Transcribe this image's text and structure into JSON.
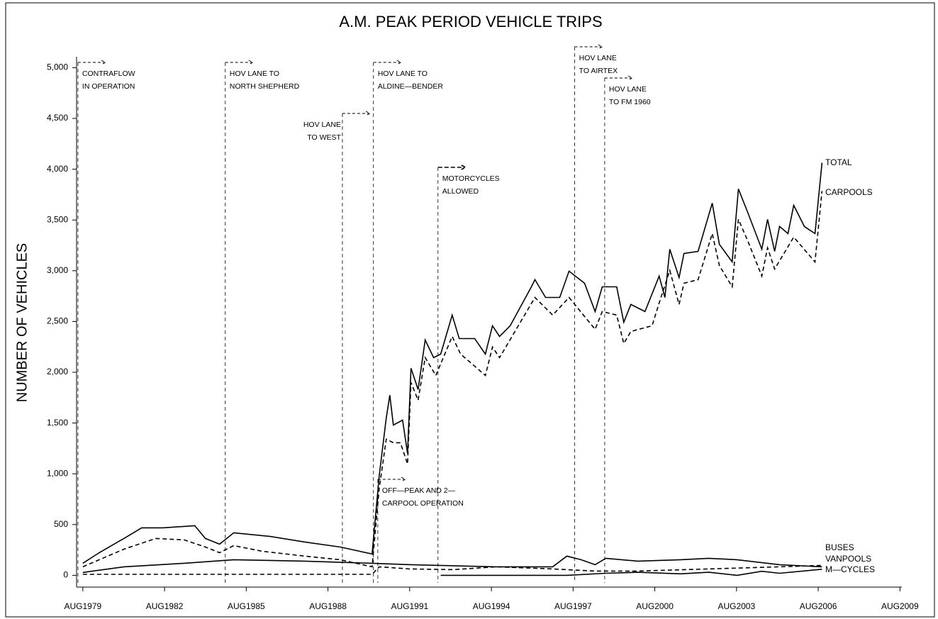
{
  "chart_data": {
    "type": "line",
    "title": "A.M. PEAK PERIOD VEHICLE TRIPS",
    "y_label": "NUMBER OF VEHICLES",
    "xlim": [
      1979.35,
      2009.65
    ],
    "xticks": [
      {
        "value": 1979.58,
        "label": "AUG1979"
      },
      {
        "value": 1982.58,
        "label": "AUG1982"
      },
      {
        "value": 1985.58,
        "label": "AUG1985"
      },
      {
        "value": 1988.58,
        "label": "AUG1988"
      },
      {
        "value": 1991.58,
        "label": "AUG1991"
      },
      {
        "value": 1994.58,
        "label": "AUG1994"
      },
      {
        "value": 1997.58,
        "label": "AUG1997"
      },
      {
        "value": 2000.58,
        "label": "AUG2000"
      },
      {
        "value": 2003.58,
        "label": "AUG2003"
      },
      {
        "value": 2006.58,
        "label": "AUG2006"
      },
      {
        "value": 2009.58,
        "label": "AUG2009"
      }
    ],
    "ylim": [
      -60,
      5050
    ],
    "yticks": [
      0,
      500,
      {
        "value": 1000,
        "label": "1,000"
      },
      {
        "value": 1500,
        "label": "1,500"
      },
      {
        "value": 2000,
        "label": "2,000"
      },
      {
        "value": 2500,
        "label": "2,500"
      },
      {
        "value": 3000,
        "label": "3,000"
      },
      {
        "value": 3500,
        "label": "3,500"
      },
      {
        "value": 4000,
        "label": "4,000"
      },
      {
        "value": 4500,
        "label": "4,500"
      },
      {
        "value": 5000,
        "label": "5,000"
      }
    ],
    "series": [
      {
        "name": "TOTAL",
        "color": "#000000",
        "style": "solid",
        "x": [
          1979.58,
          1980.18,
          1981.09,
          1981.74,
          1982.52,
          1983.69,
          1984.08,
          1984.6,
          1985.12,
          1986.43,
          1987.73,
          1989.03,
          1990.2,
          1990.46,
          1990.72,
          1990.85,
          1990.98,
          1991.32,
          1991.5,
          1991.63,
          1991.89,
          1992.15,
          1992.46,
          1992.72,
          1993.14,
          1993.4,
          1993.97,
          1994.36,
          1994.62,
          1994.88,
          1995.27,
          1996.05,
          1996.18,
          1996.57,
          1997.09,
          1997.43,
          1998.0,
          1998.39,
          1998.65,
          1999.18,
          1999.44,
          1999.7,
          2000.22,
          2000.74,
          2000.95,
          2001.13,
          2001.47,
          2001.65,
          2002.17,
          2002.69,
          2002.95,
          2003.42,
          2003.65,
          2003.99,
          2004.51,
          2004.72,
          2004.98,
          2005.16,
          2005.47,
          2005.68,
          2006.07,
          2006.46,
          2006.72
        ],
        "values": [
          119,
          223,
          363,
          468,
          468,
          489,
          363,
          307,
          419,
          384,
          328,
          279,
          210,
          978,
          1550,
          1774,
          1480,
          1529,
          1201,
          2039,
          1830,
          2318,
          2144,
          2179,
          2563,
          2332,
          2332,
          2179,
          2458,
          2353,
          2458,
          2842,
          2912,
          2737,
          2737,
          2996,
          2877,
          2598,
          2842,
          2842,
          2493,
          2668,
          2598,
          2947,
          2737,
          3212,
          2933,
          3170,
          3191,
          3666,
          3261,
          3087,
          3806,
          3575,
          3212,
          3506,
          3191,
          3436,
          3366,
          3645,
          3436,
          3366,
          4064
        ]
      },
      {
        "name": "CARPOOLS",
        "color": "#000000",
        "style": "dashed",
        "x": [
          1979.58,
          1981.09,
          1982.26,
          1983.3,
          1984.08,
          1984.6,
          1985.12,
          1986.17,
          1987.73,
          1989.03,
          1990.2,
          1990.46,
          1990.72,
          1990.98,
          1991.24,
          1991.5,
          1991.63,
          1991.89,
          1992.15,
          1992.54,
          1993.14,
          1993.45,
          1994.36,
          1994.62,
          1994.88,
          1996.18,
          1996.83,
          1997.43,
          1998.39,
          1998.65,
          1999.18,
          1999.44,
          1999.7,
          2000.48,
          2000.74,
          2001.13,
          2001.47,
          2001.65,
          2002.17,
          2002.69,
          2002.95,
          2003.42,
          2003.65,
          2003.99,
          2004.51,
          2004.72,
          2004.98,
          2005.68,
          2006.46,
          2006.72
        ],
        "values": [
          84,
          258,
          363,
          349,
          279,
          223,
          293,
          237,
          189,
          154,
          84,
          852,
          1341,
          1306,
          1306,
          1096,
          1899,
          1725,
          2144,
          1969,
          2353,
          2179,
          1969,
          2249,
          2144,
          2737,
          2563,
          2737,
          2423,
          2598,
          2563,
          2284,
          2402,
          2458,
          2682,
          3003,
          2668,
          2877,
          2912,
          3366,
          3052,
          2842,
          3506,
          3296,
          2947,
          3226,
          3017,
          3331,
          3087,
          3785
        ]
      },
      {
        "name": "BUSES",
        "color": "#000000",
        "style": "solid",
        "x": [
          1979.58,
          1981.09,
          1983.3,
          1985.12,
          1987.73,
          1990.2,
          1991.63,
          1994.75,
          1996.83,
          1997.35,
          1997.87,
          1998.39,
          1998.78,
          1999.95,
          2001.52,
          2002.56,
          2003.6,
          2005.16,
          2006.72
        ],
        "values": [
          28,
          84,
          119,
          154,
          140,
          119,
          105,
          84,
          84,
          189,
          154,
          105,
          168,
          140,
          154,
          168,
          154,
          105,
          84
        ]
      },
      {
        "name": "VANPOOLS",
        "color": "#000000",
        "style": "dashed",
        "x": [
          1979.58,
          1990.2,
          1990.46,
          1991.58,
          1993.19,
          1994.75,
          1996.83,
          1998.39,
          1999.95,
          2002.56,
          2005.16,
          2006.72
        ],
        "values": [
          10,
          10,
          84,
          63,
          56,
          84,
          63,
          42,
          42,
          63,
          84,
          98
        ]
      },
      {
        "name": "M—CYCLES",
        "color": "#000000",
        "style": "solid",
        "x": [
          1992.72,
          1994.75,
          1997.35,
          1998.78,
          1999.95,
          2001.52,
          2002.56,
          2003.6,
          2004.51,
          2005.16,
          2006.72
        ],
        "values": [
          0,
          0,
          0,
          20,
          30,
          15,
          30,
          0,
          40,
          20,
          60
        ]
      }
    ],
    "annotations": [
      {
        "x": 1979.4,
        "text": [
          "CONTRAFLOW",
          "IN OPERATION"
        ]
      },
      {
        "x": 1984.81,
        "text": [
          "HOV LANE TO",
          "NORTH SHEPHERD"
        ]
      },
      {
        "x": 1989.11,
        "text": [
          "HOV LANE",
          "TO WEST"
        ]
      },
      {
        "x": 1990.25,
        "text": [
          "HOV LANE TO",
          "ALDINE—BENDER"
        ]
      },
      {
        "x": 1990.41,
        "text": [
          "OFF—PEAK AND 2—",
          "CARPOOL OPERATION"
        ]
      },
      {
        "x": 1992.62,
        "text": [
          "MOTORCYCLES",
          "ALLOWED"
        ]
      },
      {
        "x": 1997.64,
        "text": [
          "HOV LANE",
          "TO AIRTEX"
        ]
      },
      {
        "x": 1998.74,
        "text": [
          "HOV LANE",
          "TO FM 1960"
        ]
      }
    ]
  }
}
